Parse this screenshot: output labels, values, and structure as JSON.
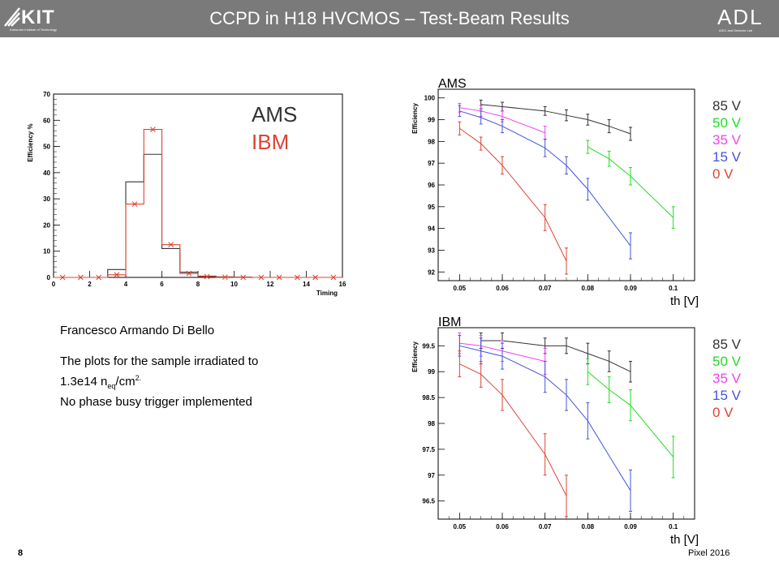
{
  "header": {
    "title": "CCPD in H18 HVCMOS – Test-Beam Results",
    "logo_left": "KIT",
    "logo_left_sub": "Karlsruhe Institute of Technology",
    "logo_right": "ADL",
    "logo_right_sub": "ASIC and Detector Lab"
  },
  "notes": {
    "author": "Francesco Armando Di Bello",
    "line1": "The plots for the sample irradiated to",
    "line2_value": "1.3e14 n",
    "line2_sub": "eq",
    "line2_unit": "/cm",
    "line2_sup": "2.",
    "line3": "No phase busy trigger implemented"
  },
  "footer": {
    "page": "8",
    "conference": "Pixel 2016"
  },
  "colors": {
    "black": "#333333",
    "green": "#22dd22",
    "magenta": "#ee44ee",
    "blue": "#4455dd",
    "red": "#dd4433",
    "header_bg": "#7a7a7a"
  },
  "chart_data": [
    {
      "type": "histogram",
      "xlabel": "Timing",
      "ylabel": "Efficiency %",
      "xlim": [
        0,
        16
      ],
      "ylim": [
        0,
        70
      ],
      "xticks": [
        0,
        2,
        4,
        6,
        8,
        10,
        12,
        14,
        16
      ],
      "yticks": [
        0,
        10,
        20,
        30,
        40,
        50,
        60,
        70
      ],
      "bin_edges": [
        0,
        1,
        2,
        3,
        4,
        5,
        6,
        7,
        8,
        9,
        10,
        11,
        12,
        13,
        14,
        15,
        16
      ],
      "series": [
        {
          "name": "AMS",
          "color": "#333333",
          "values": [
            0,
            0,
            0,
            3,
            36.5,
            47,
            11,
            2,
            0.5,
            0.2,
            0.1,
            0,
            0,
            0,
            0,
            0
          ]
        },
        {
          "name": "IBM",
          "color": "#dd4433",
          "values": [
            0,
            0,
            0,
            1,
            28,
            56.5,
            12.5,
            1.5,
            0.3,
            0.1,
            0,
            0,
            0,
            0,
            0,
            0
          ]
        }
      ]
    },
    {
      "type": "line",
      "title": "AMS",
      "xlabel": "th [V]",
      "ylabel": "Efficiency",
      "xlim": [
        0.045,
        0.105
      ],
      "ylim": [
        91.6,
        100.4
      ],
      "xticks": [
        0.05,
        0.06,
        0.07,
        0.08,
        0.09,
        0.1
      ],
      "yticks": [
        92,
        93,
        94,
        95,
        96,
        97,
        98,
        99,
        100
      ],
      "series": [
        {
          "name": "85 V",
          "color": "#333333",
          "x": [
            0.055,
            0.06,
            0.07,
            0.075,
            0.08,
            0.085,
            0.09
          ],
          "y": [
            99.7,
            99.6,
            99.4,
            99.2,
            99.0,
            98.7,
            98.35
          ],
          "err": [
            0.2,
            0.2,
            0.2,
            0.25,
            0.25,
            0.3,
            0.3
          ]
        },
        {
          "name": "50 V",
          "color": "#22dd22",
          "x": [
            0.08,
            0.085,
            0.09,
            0.1
          ],
          "y": [
            97.75,
            97.2,
            96.4,
            94.5
          ],
          "err": [
            0.3,
            0.35,
            0.4,
            0.5
          ]
        },
        {
          "name": "35 V",
          "color": "#ee44ee",
          "x": [
            0.05,
            0.055,
            0.06,
            0.07
          ],
          "y": [
            99.55,
            99.4,
            99.15,
            98.4
          ],
          "err": [
            0.2,
            0.25,
            0.25,
            0.3
          ]
        },
        {
          "name": "15 V",
          "color": "#4455dd",
          "x": [
            0.05,
            0.055,
            0.06,
            0.07,
            0.075,
            0.08,
            0.09
          ],
          "y": [
            99.4,
            99.1,
            98.7,
            97.7,
            96.9,
            95.8,
            93.2
          ],
          "err": [
            0.25,
            0.3,
            0.3,
            0.4,
            0.4,
            0.5,
            0.6
          ]
        },
        {
          "name": "0 V",
          "color": "#dd4433",
          "x": [
            0.05,
            0.055,
            0.06,
            0.07,
            0.075
          ],
          "y": [
            98.6,
            97.9,
            96.9,
            94.5,
            92.5
          ],
          "err": [
            0.3,
            0.3,
            0.4,
            0.6,
            0.6
          ]
        }
      ]
    },
    {
      "type": "line",
      "title": "IBM",
      "xlabel": "th [V]",
      "ylabel": "Efficiency",
      "xlim": [
        0.045,
        0.105
      ],
      "ylim": [
        96.15,
        99.85
      ],
      "xticks": [
        0.05,
        0.06,
        0.07,
        0.08,
        0.09,
        0.1
      ],
      "yticks": [
        96.5,
        97,
        97.5,
        98,
        98.5,
        99,
        99.5
      ],
      "series": [
        {
          "name": "85 V",
          "color": "#333333",
          "x": [
            0.055,
            0.06,
            0.07,
            0.075,
            0.08,
            0.085,
            0.09
          ],
          "y": [
            99.6,
            99.6,
            99.5,
            99.5,
            99.35,
            99.2,
            99.0
          ],
          "err": [
            0.15,
            0.15,
            0.15,
            0.15,
            0.2,
            0.2,
            0.2
          ]
        },
        {
          "name": "50 V",
          "color": "#22dd22",
          "x": [
            0.08,
            0.085,
            0.09,
            0.1
          ],
          "y": [
            99.0,
            98.65,
            98.35,
            97.35
          ],
          "err": [
            0.25,
            0.25,
            0.3,
            0.4
          ]
        },
        {
          "name": "35 V",
          "color": "#ee44ee",
          "x": [
            0.05,
            0.055,
            0.06,
            0.07
          ],
          "y": [
            99.55,
            99.5,
            99.4,
            99.2
          ],
          "err": [
            0.2,
            0.2,
            0.2,
            0.25
          ]
        },
        {
          "name": "15 V",
          "color": "#4455dd",
          "x": [
            0.05,
            0.055,
            0.06,
            0.07,
            0.075,
            0.08,
            0.09
          ],
          "y": [
            99.5,
            99.4,
            99.3,
            98.9,
            98.55,
            98.05,
            96.7
          ],
          "err": [
            0.2,
            0.25,
            0.25,
            0.3,
            0.3,
            0.35,
            0.4
          ]
        },
        {
          "name": "0 V",
          "color": "#dd4433",
          "x": [
            0.05,
            0.055,
            0.06,
            0.07,
            0.075
          ],
          "y": [
            99.15,
            98.95,
            98.55,
            97.4,
            96.6
          ],
          "err": [
            0.25,
            0.25,
            0.3,
            0.4,
            0.4
          ]
        }
      ]
    }
  ]
}
